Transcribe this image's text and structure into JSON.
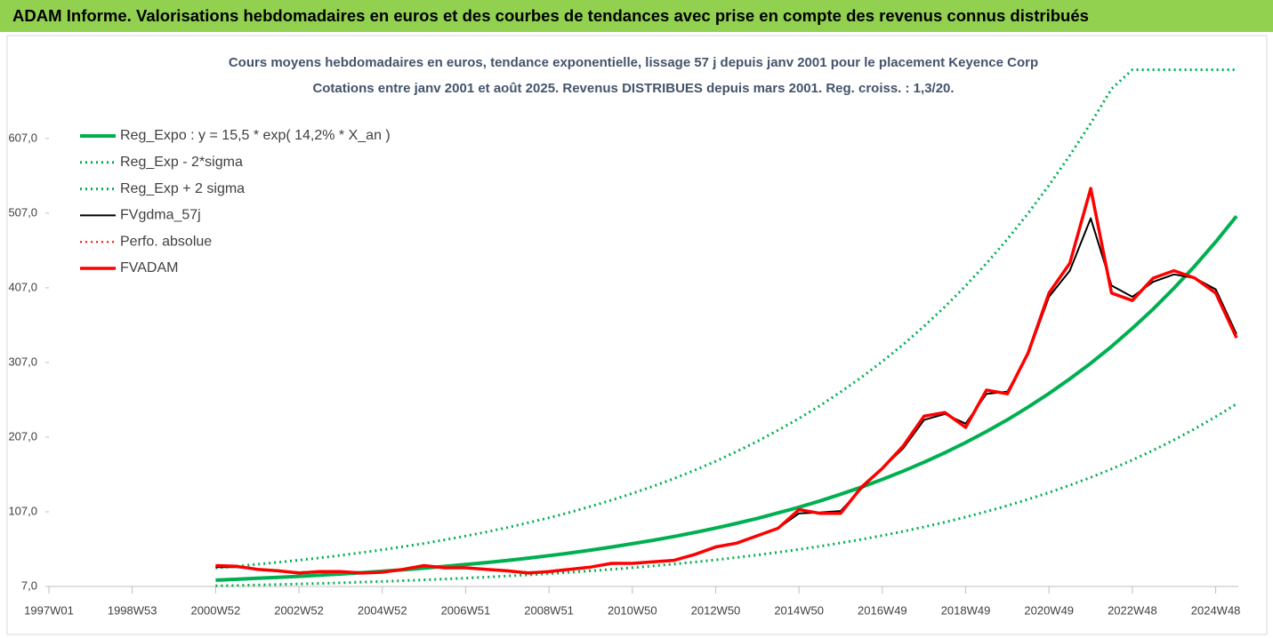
{
  "chart_data": {
    "type": "line",
    "header": "ADAM Informe. Valorisations hebdomadaires en euros et des courbes de tendances avec prise en compte des revenus connus distribués",
    "title": "Cours moyens hebdomadaires en euros, tendance exponentielle, lissage 57 j depuis janv 2001 pour le placement Keyence Corp",
    "subtitle": "Cotations entre janv 2001 et août 2025.  Revenus DISTRIBUES depuis mars 2001. Reg. croiss. : 1,3/20.",
    "categories": [
      "1997W01",
      null,
      null,
      null,
      "1998W53",
      null,
      null,
      null,
      "2000W52",
      null,
      null,
      null,
      "2002W52",
      null,
      null,
      null,
      "2004W52",
      null,
      null,
      null,
      "2006W51",
      null,
      null,
      null,
      "2008W51",
      null,
      null,
      null,
      "2010W50",
      null,
      null,
      null,
      "2012W50",
      null,
      null,
      null,
      "2014W50",
      null,
      null,
      null,
      "2016W49",
      null,
      null,
      null,
      "2018W49",
      null,
      null,
      null,
      "2020W49",
      null,
      null,
      null,
      "2022W48",
      null,
      null,
      null,
      "2024W48",
      null
    ],
    "ylim": [
      7,
      727
    ],
    "yticks": [
      {
        "value": 7,
        "label": "7,0"
      },
      {
        "value": 107,
        "label": "107,0"
      },
      {
        "value": 207,
        "label": "207,0"
      },
      {
        "value": 307,
        "label": "307,0"
      },
      {
        "value": 407,
        "label": "407,0"
      },
      {
        "value": 507,
        "label": "507,0"
      },
      {
        "value": 607,
        "label": "607,0"
      }
    ],
    "legend": "top-left",
    "series": [
      {
        "name": "Reg_Expo : y = 15,5 * exp( 14,2% *  X_an )",
        "color": "#00b050",
        "style": "solid",
        "values": [
          null,
          null,
          null,
          null,
          null,
          null,
          null,
          null,
          15.5,
          16.6,
          17.9,
          19.2,
          20.6,
          22.1,
          23.7,
          25.5,
          27.4,
          29.4,
          31.5,
          33.9,
          36.4,
          39.0,
          41.9,
          45.0,
          48.3,
          51.8,
          55.7,
          59.8,
          64.2,
          68.9,
          73.9,
          79.4,
          85.2,
          91.5,
          98.2,
          105.5,
          113.2,
          121.5,
          130.5,
          140.1,
          150.4,
          161.5,
          173.4,
          186.1,
          199.8,
          214.5,
          230.3,
          247.3,
          265.5,
          285.0,
          306.0,
          328.5,
          352.7,
          378.6,
          406.5,
          436.4,
          468.5,
          503.0
        ]
      },
      {
        "name": "Reg_Exp - 2*sigma",
        "color": "#00b050",
        "style": "dotted",
        "values": [
          null,
          null,
          null,
          null,
          null,
          null,
          null,
          null,
          7.8,
          8.3,
          9.0,
          9.6,
          10.3,
          11.1,
          11.9,
          12.8,
          13.7,
          14.7,
          15.8,
          17.0,
          18.2,
          19.5,
          21.0,
          22.5,
          24.2,
          25.9,
          27.9,
          29.9,
          32.1,
          34.5,
          37.0,
          39.7,
          42.6,
          45.8,
          49.1,
          52.8,
          56.6,
          60.8,
          65.3,
          70.1,
          75.2,
          80.8,
          86.7,
          93.1,
          99.9,
          107.3,
          115.2,
          123.7,
          132.8,
          142.5,
          153.0,
          164.3,
          176.4,
          189.3,
          203.3,
          218.2,
          234.3,
          251.5
        ]
      },
      {
        "name": "Reg_Exp + 2 sigma",
        "color": "#00b050",
        "style": "dotted",
        "values": [
          null,
          null,
          null,
          null,
          null,
          null,
          null,
          null,
          31.8,
          34.0,
          36.7,
          39.4,
          42.2,
          45.3,
          48.6,
          52.3,
          56.2,
          60.3,
          64.6,
          69.5,
          74.6,
          80.0,
          85.9,
          92.3,
          99.0,
          106.2,
          114.2,
          122.6,
          131.6,
          141.2,
          151.5,
          162.8,
          174.7,
          187.6,
          201.3,
          216.3,
          232.1,
          249.1,
          267.5,
          287.2,
          308.3,
          331.1,
          355.5,
          381.5,
          409.6,
          439.7,
          472.1,
          507.0,
          544.3,
          584.3,
          627.3,
          673.4,
          699,
          699,
          699,
          699,
          699,
          699
        ]
      },
      {
        "name": "FVgdma_57j",
        "color": "#000000",
        "style": "solid",
        "values": [
          null,
          null,
          null,
          null,
          null,
          null,
          null,
          null,
          33,
          33,
          30,
          28,
          26,
          27,
          27,
          26,
          26,
          30,
          34,
          32,
          32,
          30,
          28,
          26,
          27,
          30,
          33,
          37,
          38,
          40,
          42,
          49,
          59,
          65,
          74,
          85,
          105,
          106,
          108,
          138,
          165,
          192,
          230,
          238,
          225,
          265,
          268,
          318,
          395,
          430,
          500,
          410,
          395,
          415,
          425,
          420,
          405,
          345
        ]
      },
      {
        "name": "Perfo. absolue",
        "color": "#ff0000",
        "style": "dotted",
        "values": [
          null,
          null,
          null,
          null,
          null,
          null,
          null,
          null,
          35,
          34,
          30,
          28,
          25,
          27,
          27,
          25,
          26,
          30,
          35,
          32,
          32,
          30,
          28,
          25,
          27,
          30,
          33,
          38,
          38,
          40,
          42,
          50,
          60,
          65,
          75,
          85,
          110,
          105,
          105,
          140,
          165,
          195,
          235,
          240,
          220,
          270,
          265,
          320,
          400,
          440,
          540,
          400,
          390,
          420,
          430,
          420,
          400,
          340
        ]
      },
      {
        "name": "FVADAM",
        "color": "#ff0000",
        "style": "solid",
        "values": [
          null,
          null,
          null,
          null,
          null,
          null,
          null,
          null,
          35,
          34,
          30,
          28,
          25,
          27,
          27,
          25,
          26,
          30,
          35,
          32,
          32,
          30,
          28,
          25,
          27,
          30,
          33,
          38,
          38,
          40,
          42,
          50,
          60,
          65,
          75,
          85,
          110,
          105,
          105,
          140,
          165,
          195,
          235,
          240,
          220,
          270,
          265,
          320,
          400,
          440,
          540,
          400,
          390,
          420,
          430,
          420,
          400,
          340
        ]
      }
    ]
  }
}
